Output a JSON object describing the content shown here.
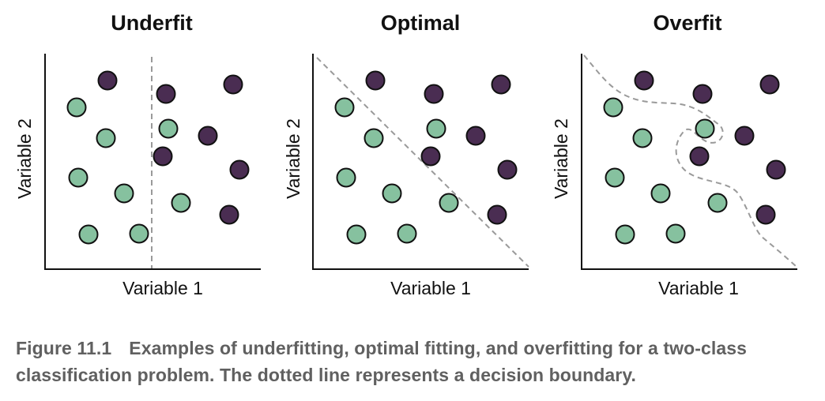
{
  "colors": {
    "class_a": "#86c19f",
    "class_b": "#4a2d52",
    "boundary": "#9a9a9a",
    "caption": "#606060"
  },
  "panels": [
    {
      "title": "Underfit",
      "xlabel": "Variable 1",
      "ylabel": "Variable 2",
      "boundary": "vertical line"
    },
    {
      "title": "Optimal",
      "xlabel": "Variable 1",
      "ylabel": "Variable 2",
      "boundary": "diagonal line"
    },
    {
      "title": "Overfit",
      "xlabel": "Variable 1",
      "ylabel": "Variable 2",
      "boundary": "wiggly curve"
    }
  ],
  "caption": {
    "label": "Figure 11.1",
    "text": "Examples of underfitting, optimal fitting, and overfitting for a two-class classification problem. The dotted line represents a decision boundary."
  }
}
